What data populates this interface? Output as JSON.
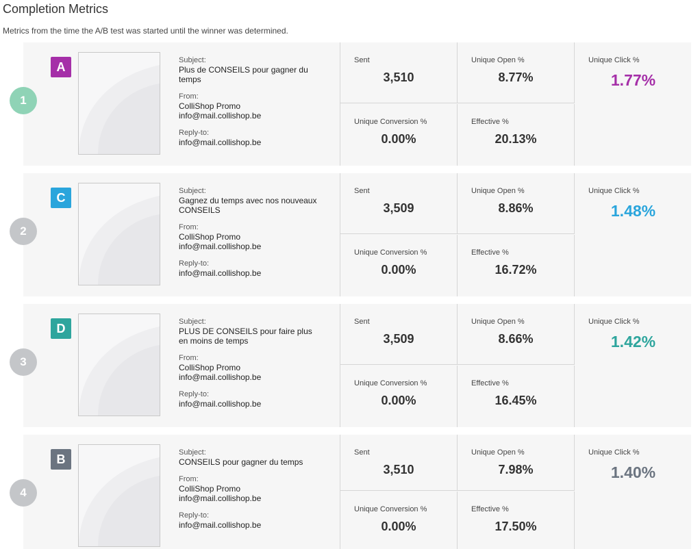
{
  "page": {
    "title": "Completion Metrics",
    "subtitle": "Metrics from the time the A/B test was started until the winner was determined."
  },
  "labels": {
    "subject": "Subject:",
    "from": "From:",
    "reply_to": "Reply-to:",
    "sent": "Sent",
    "unique_open": "Unique Open %",
    "unique_conversion": "Unique Conversion %",
    "effective": "Effective %",
    "unique_click": "Unique Click %"
  },
  "variants": [
    {
      "rank": "1",
      "letter": "A",
      "letter_color": "#a52fa8",
      "rank_color": "#8fd3b6",
      "subject": "Plus de CONSEILS pour gagner du temps",
      "from_name": "ColliShop Promo",
      "from_email": "info@mail.collishop.be",
      "reply_to": "info@mail.collishop.be",
      "sent": "3,510",
      "unique_open": "8.77%",
      "unique_conversion": "0.00%",
      "effective": "20.13%",
      "unique_click": "1.77%",
      "click_color": "#a52fa8"
    },
    {
      "rank": "2",
      "letter": "C",
      "letter_color": "#2aa5dc",
      "rank_color": "#c4c6c9",
      "subject": "Gagnez du temps avec nos nouveaux CONSEILS",
      "from_name": "ColliShop Promo",
      "from_email": "info@mail.collishop.be",
      "reply_to": "info@mail.collishop.be",
      "sent": "3,509",
      "unique_open": "8.86%",
      "unique_conversion": "0.00%",
      "effective": "16.72%",
      "unique_click": "1.48%",
      "click_color": "#2aa5dc"
    },
    {
      "rank": "3",
      "letter": "D",
      "letter_color": "#2ea59d",
      "rank_color": "#c4c6c9",
      "subject": "PLUS DE CONSEILS pour faire plus en moins de temps",
      "from_name": "ColliShop Promo",
      "from_email": "info@mail.collishop.be",
      "reply_to": "info@mail.collishop.be",
      "sent": "3,509",
      "unique_open": "8.66%",
      "unique_conversion": "0.00%",
      "effective": "16.45%",
      "unique_click": "1.42%",
      "click_color": "#2ea59d"
    },
    {
      "rank": "4",
      "letter": "B",
      "letter_color": "#6b7480",
      "rank_color": "#c4c6c9",
      "subject": "CONSEILS pour gagner du temps",
      "from_name": "ColliShop Promo",
      "from_email": "info@mail.collishop.be",
      "reply_to": "info@mail.collishop.be",
      "sent": "3,510",
      "unique_open": "7.98%",
      "unique_conversion": "0.00%",
      "effective": "17.50%",
      "unique_click": "1.40%",
      "click_color": "#6b7480"
    }
  ]
}
